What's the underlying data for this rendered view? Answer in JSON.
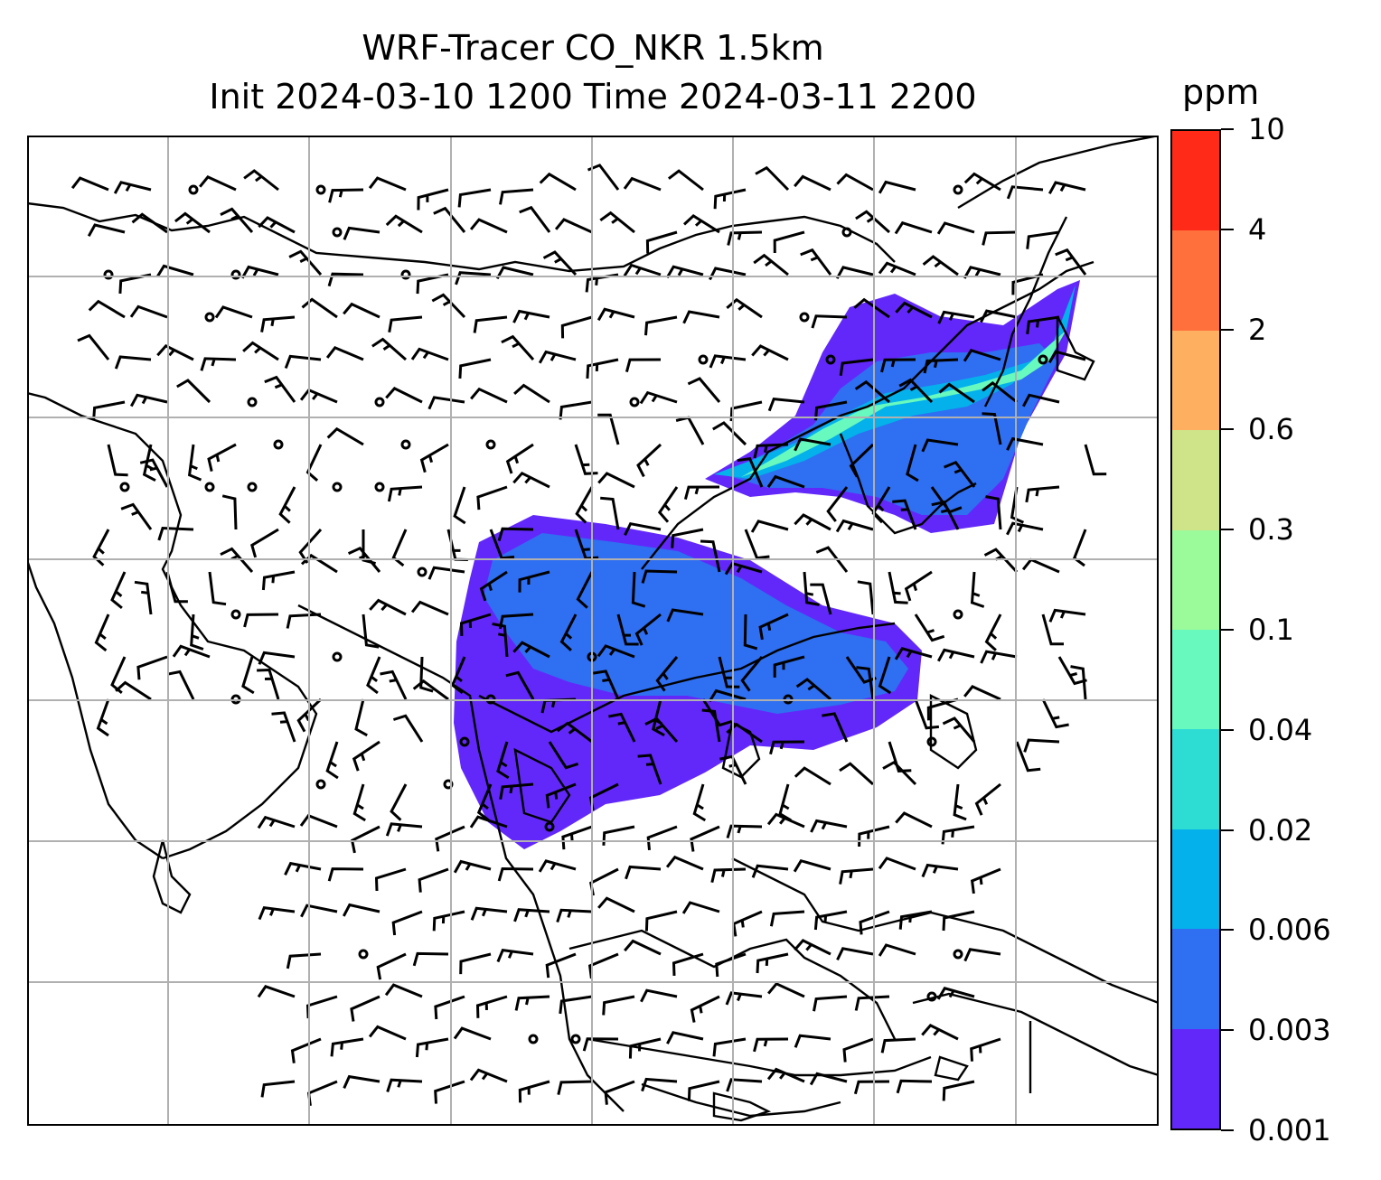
{
  "title": {
    "line1": "WRF-Tracer CO_NKR 1.5km",
    "line2": "Init 2024-03-10 1200 Time 2024-03-11 2200"
  },
  "colorbar": {
    "unit": "ppm",
    "levels": [
      "0.001",
      "0.003",
      "0.006",
      "0.02",
      "0.04",
      "0.1",
      "0.3",
      "0.6",
      "2",
      "4",
      "10"
    ],
    "colors": [
      "#6228fa",
      "#2f6ff1",
      "#04b1eb",
      "#2dddd4",
      "#68f9be",
      "#9bfa9a",
      "#cfe388",
      "#feb060",
      "#ff703c",
      "#ff2b18"
    ]
  },
  "map": {
    "gridlines": true,
    "gridline_color": "#b0b0b0",
    "coastline_color": "#000000",
    "tracer_source": "CO_NKR",
    "layers": [
      "tracer concentration shading",
      "wind barbs",
      "coastlines and borders",
      "lat/lon gridlines"
    ]
  }
}
